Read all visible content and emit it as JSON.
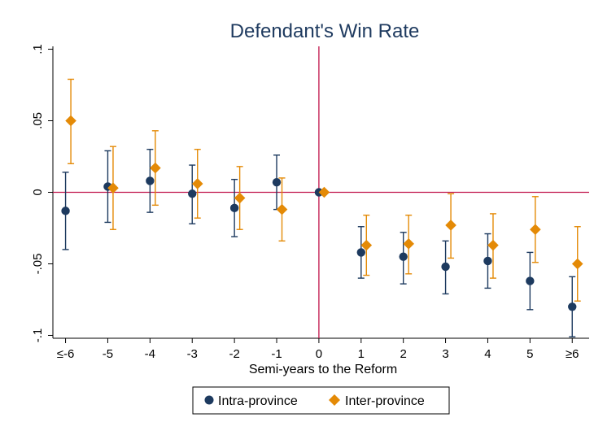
{
  "chart_data": {
    "type": "scatter",
    "title": "Defendant's Win Rate",
    "xlabel": "Semi-years to the Reform",
    "ylabel": "",
    "categories": [
      "≤-6",
      "-5",
      "-4",
      "-3",
      "-2",
      "-1",
      "0",
      "1",
      "2",
      "3",
      "4",
      "5",
      "≥6"
    ],
    "x": [
      -6,
      -5,
      -4,
      -3,
      -2,
      -1,
      0,
      1,
      2,
      3,
      4,
      5,
      6
    ],
    "xlim": [
      -6.3,
      6.4
    ],
    "ylim": [
      -0.102,
      0.102
    ],
    "yticks": [
      0.1,
      0.05,
      0,
      -0.05,
      -0.1
    ],
    "ytick_labels": [
      ".1",
      ".05",
      "0",
      "-.05",
      "-.1"
    ],
    "reference_lines": {
      "x": 0,
      "y": 0,
      "color": "#c0134a"
    },
    "legend": {
      "position": "bottom",
      "frame": true
    },
    "grid": false,
    "series": [
      {
        "name": "Intra-province",
        "marker": "circle",
        "color": "#1d3a5f",
        "values": [
          -0.013,
          0.004,
          0.008,
          -0.001,
          -0.011,
          0.007,
          0.0,
          -0.042,
          -0.045,
          -0.052,
          -0.048,
          -0.062,
          -0.08
        ],
        "ci_low": [
          -0.04,
          -0.021,
          -0.014,
          -0.022,
          -0.031,
          -0.012,
          0.0,
          -0.06,
          -0.064,
          -0.071,
          -0.067,
          -0.082,
          -0.101
        ],
        "ci_high": [
          0.014,
          0.029,
          0.03,
          0.019,
          0.009,
          0.026,
          0.0,
          -0.024,
          -0.028,
          -0.034,
          -0.029,
          -0.042,
          -0.059
        ]
      },
      {
        "name": "Inter-province",
        "marker": "diamond",
        "color": "#e48a06",
        "values": [
          0.05,
          0.003,
          0.017,
          0.006,
          -0.004,
          -0.012,
          0.0,
          -0.037,
          -0.036,
          -0.023,
          -0.037,
          -0.026,
          -0.05
        ],
        "ci_low": [
          0.02,
          -0.026,
          -0.009,
          -0.018,
          -0.026,
          -0.034,
          0.0,
          -0.058,
          -0.057,
          -0.046,
          -0.06,
          -0.049,
          -0.076
        ],
        "ci_high": [
          0.079,
          0.032,
          0.043,
          0.03,
          0.018,
          0.01,
          0.0,
          -0.016,
          -0.016,
          -0.001,
          -0.015,
          -0.003,
          -0.024
        ]
      }
    ]
  }
}
